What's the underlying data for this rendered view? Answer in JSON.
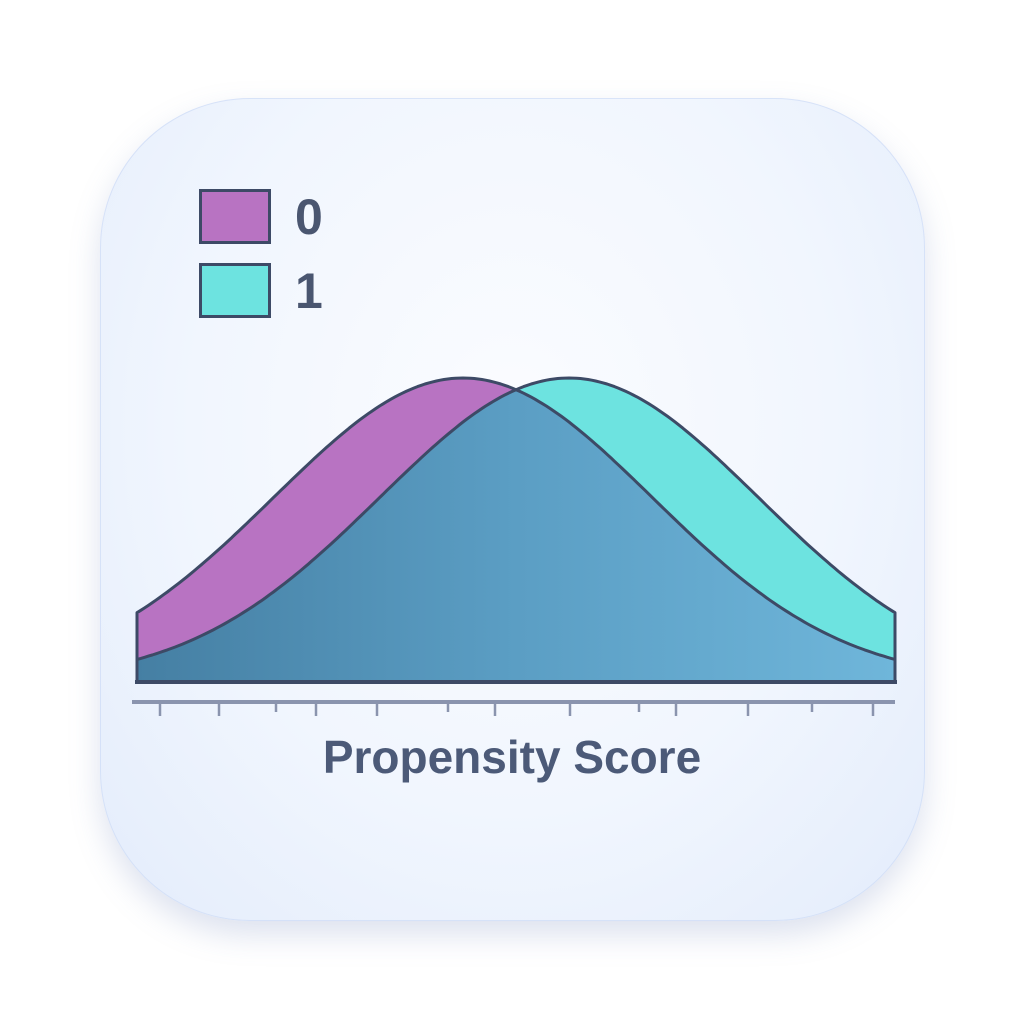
{
  "chart_data": {
    "type": "area",
    "title": "",
    "xlabel": "Propensity Score",
    "ylabel": "",
    "xlim": [
      0,
      1
    ],
    "grid": false,
    "legend_position": "top-left",
    "x_tick_count": 13,
    "series": [
      {
        "name": "0",
        "distribution": "normal",
        "mean": 0.43,
        "sd": 0.25,
        "color": "#b873c2"
      },
      {
        "name": "1",
        "distribution": "normal",
        "mean": 0.57,
        "sd": 0.25,
        "color": "#6de3e0"
      }
    ],
    "overlap_color": "#5b9ec4"
  }
}
